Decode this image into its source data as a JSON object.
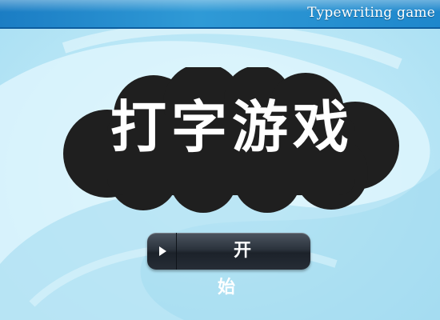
{
  "header": {
    "subtitle": "Typewriting game"
  },
  "title": {
    "text": "打字游戏"
  },
  "start_button": {
    "label": "开始"
  },
  "colors": {
    "background": "#bfe9f7",
    "header_bar": "#2f9ad6",
    "cloud": "#1f1f1f",
    "title_text": "#ffffff",
    "button": "#2b333c"
  }
}
